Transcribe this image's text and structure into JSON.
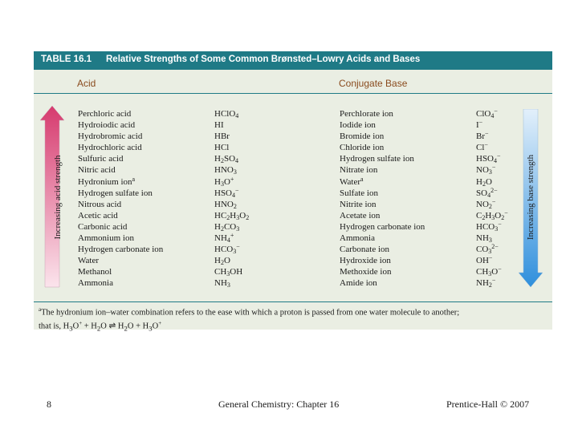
{
  "table": {
    "number": "TABLE 16.1",
    "title": "Relative Strengths of Some Common Brønsted–Lowry Acids and Bases",
    "acid_header": "Acid",
    "base_header": "Conjugate Base",
    "acid_axis_label": "Increasing acid strength",
    "base_axis_label": "Increasing base strength",
    "rows": [
      {
        "acid_name": "Perchloric acid",
        "acid_formula": "HClO<sub>4</sub>",
        "base_name": "Perchlorate ion",
        "base_formula": "ClO<sub>4</sub><sup>−</sup>"
      },
      {
        "acid_name": "Hydroiodic acid",
        "acid_formula": "HI",
        "base_name": "Iodide ion",
        "base_formula": "I<sup>−</sup>"
      },
      {
        "acid_name": "Hydrobromic acid",
        "acid_formula": "HBr",
        "base_name": "Bromide ion",
        "base_formula": "Br<sup>−</sup>"
      },
      {
        "acid_name": "Hydrochloric acid",
        "acid_formula": "HCl",
        "base_name": "Chloride ion",
        "base_formula": "Cl<sup>−</sup>"
      },
      {
        "acid_name": "Sulfuric acid",
        "acid_formula": "H<sub>2</sub>SO<sub>4</sub>",
        "base_name": "Hydrogen sulfate ion",
        "base_formula": "HSO<sub>4</sub><sup>−</sup>"
      },
      {
        "acid_name": "Nitric acid",
        "acid_formula": "HNO<sub>3</sub>",
        "base_name": "Nitrate ion",
        "base_formula": "NO<sub>3</sub><sup>−</sup>"
      },
      {
        "acid_name": "Hydronium ion<sup>a</sup>",
        "acid_formula": "H<sub>3</sub>O<sup>+</sup>",
        "base_name": "Water<sup>a</sup>",
        "base_formula": "H<sub>2</sub>O"
      },
      {
        "acid_name": "Hydrogen sulfate ion",
        "acid_formula": "HSO<sub>4</sub><sup>−</sup>",
        "base_name": "Sulfate ion",
        "base_formula": "SO<sub>4</sub><sup>2−</sup>"
      },
      {
        "acid_name": "Nitrous acid",
        "acid_formula": "HNO<sub>2</sub>",
        "base_name": "Nitrite ion",
        "base_formula": "NO<sub>2</sub><sup>−</sup>"
      },
      {
        "acid_name": "Acetic acid",
        "acid_formula": "HC<sub>2</sub>H<sub>3</sub>O<sub>2</sub>",
        "base_name": "Acetate ion",
        "base_formula": "C<sub>2</sub>H<sub>3</sub>O<sub>2</sub><sup>−</sup>"
      },
      {
        "acid_name": "Carbonic acid",
        "acid_formula": "H<sub>2</sub>CO<sub>3</sub>",
        "base_name": "Hydrogen carbonate ion",
        "base_formula": "HCO<sub>3</sub><sup>−</sup>"
      },
      {
        "acid_name": "Ammonium ion",
        "acid_formula": "NH<sub>4</sub><sup>+</sup>",
        "base_name": "Ammonia",
        "base_formula": "NH<sub>3</sub>"
      },
      {
        "acid_name": "Hydrogen carbonate ion",
        "acid_formula": "HCO<sub>3</sub><sup>−</sup>",
        "base_name": "Carbonate ion",
        "base_formula": "CO<sub>3</sub><sup>2−</sup>"
      },
      {
        "acid_name": "Water",
        "acid_formula": "H<sub>2</sub>O",
        "base_name": "Hydroxide ion",
        "base_formula": "OH<sup>−</sup>"
      },
      {
        "acid_name": "Methanol",
        "acid_formula": "CH<sub>3</sub>OH",
        "base_name": "Methoxide ion",
        "base_formula": "CH<sub>3</sub>O<sup>−</sup>"
      },
      {
        "acid_name": "Ammonia",
        "acid_formula": "NH<sub>3</sub>",
        "base_name": "Amide ion",
        "base_formula": "NH<sub>2</sub><sup>−</sup>"
      }
    ],
    "footnote_line1": "<sup>a</sup>The hydronium ion–water combination refers to the ease with which a proton is passed from one water molecule to another;",
    "footnote_line2": "that is, H<sub>3</sub>O<sup>+</sup> + H<sub>2</sub>O ⇌ H<sub>2</sub>O + H<sub>3</sub>O<sup>+</sup>"
  },
  "colors": {
    "title_bar": "#1f7a86",
    "header_text": "#8a4b1e",
    "panel_bg": "#eaeee3",
    "acid_arrow_top": "#d63a6e",
    "acid_arrow_bottom": "#fbe4ec",
    "base_arrow_top": "#e3f0fb",
    "base_arrow_bottom": "#2f8fdc"
  },
  "footer": {
    "slide_number": "8",
    "course": "General Chemistry: Chapter 16",
    "publisher": "Prentice-Hall © 2007"
  }
}
